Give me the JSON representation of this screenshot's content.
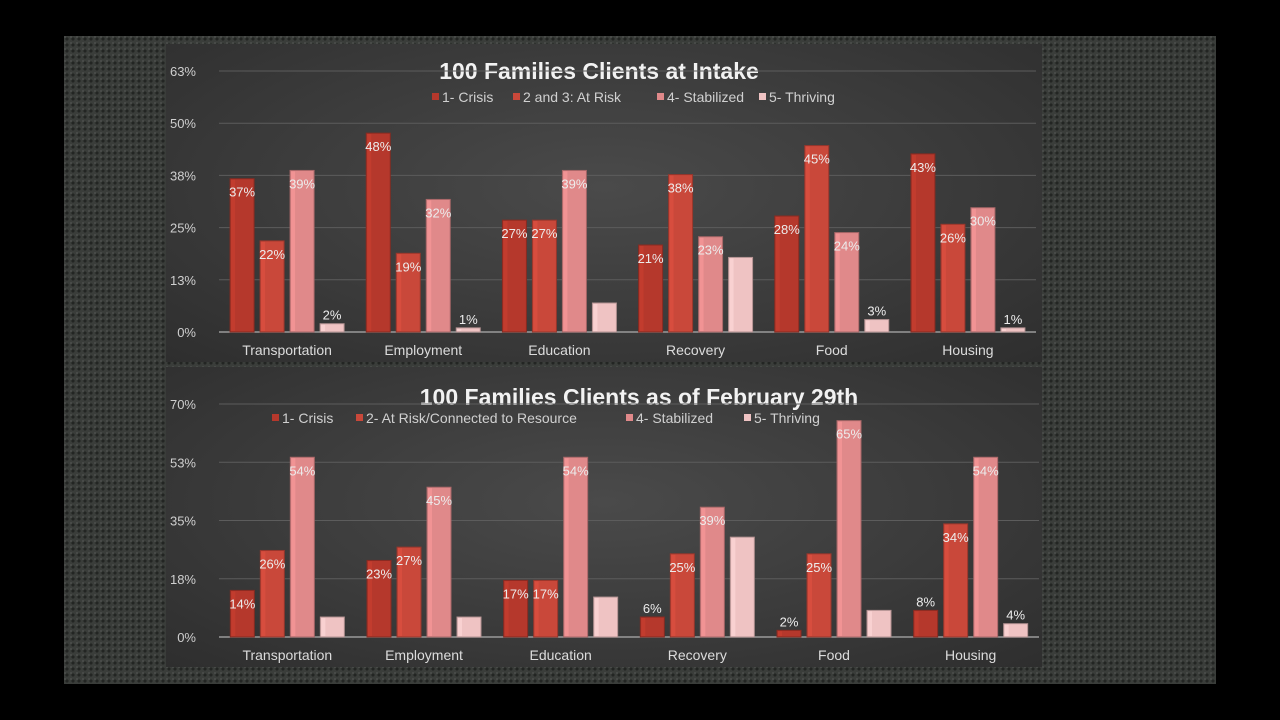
{
  "chart_data": [
    {
      "type": "bar",
      "title": "100 Families Clients at Intake",
      "categories": [
        "Transportation",
        "Employment",
        "Education",
        "Recovery",
        "Food",
        "Housing"
      ],
      "yticks": [
        "0%",
        "13%",
        "25%",
        "38%",
        "50%",
        "63%"
      ],
      "ylim": [
        0,
        63
      ],
      "legend_position": "top",
      "series": [
        {
          "name": "1- Crisis",
          "color": "#b5382c",
          "values": [
            37,
            48,
            27,
            21,
            28,
            43
          ],
          "labels": [
            "37%",
            "48%",
            "27%",
            "21%",
            "28%",
            "43%"
          ]
        },
        {
          "name": "2 and 3: At Risk",
          "color": "#c9483a",
          "values": [
            22,
            19,
            27,
            38,
            45,
            26
          ],
          "labels": [
            "22%",
            "19%",
            "27%",
            "38%",
            "45%",
            "26%"
          ]
        },
        {
          "name": "4- Stabilized",
          "color": "#e0898a",
          "values": [
            39,
            32,
            39,
            23,
            24,
            30
          ],
          "labels": [
            "39%",
            "32%",
            "39%",
            "23%",
            "24%",
            "30%"
          ]
        },
        {
          "name": "5- Thriving",
          "color": "#efc3c3",
          "values": [
            2,
            1,
            7,
            18,
            3,
            1
          ],
          "labels": [
            "2%",
            "1%",
            "",
            "",
            "3%",
            "1%"
          ]
        }
      ]
    },
    {
      "type": "bar",
      "title": "100 Families Clients as of February 29th",
      "categories": [
        "Transportation",
        "Employment",
        "Education",
        "Recovery",
        "Food",
        "Housing"
      ],
      "yticks": [
        "0%",
        "18%",
        "35%",
        "53%",
        "70%"
      ],
      "ylim": [
        0,
        70
      ],
      "legend_position": "top",
      "series": [
        {
          "name": "1- Crisis",
          "color": "#b5382c",
          "values": [
            14,
            23,
            17,
            6,
            2,
            8
          ],
          "labels": [
            "14%",
            "23%",
            "17%",
            "6%",
            "2%",
            "8%"
          ]
        },
        {
          "name": "2- At Risk/Connected to Resource",
          "color": "#c9483a",
          "values": [
            26,
            27,
            17,
            25,
            25,
            34
          ],
          "labels": [
            "26%",
            "27%",
            "17%",
            "25%",
            "25%",
            "34%"
          ]
        },
        {
          "name": "4- Stabilized",
          "color": "#e0898a",
          "values": [
            54,
            45,
            54,
            39,
            65,
            54
          ],
          "labels": [
            "54%",
            "45%",
            "54%",
            "39%",
            "65%",
            "54%"
          ]
        },
        {
          "name": "5- Thriving",
          "color": "#efc3c3",
          "values": [
            6,
            6,
            12,
            30,
            8,
            4
          ],
          "labels": [
            "",
            "",
            "",
            "",
            "",
            "4%"
          ]
        }
      ]
    }
  ]
}
